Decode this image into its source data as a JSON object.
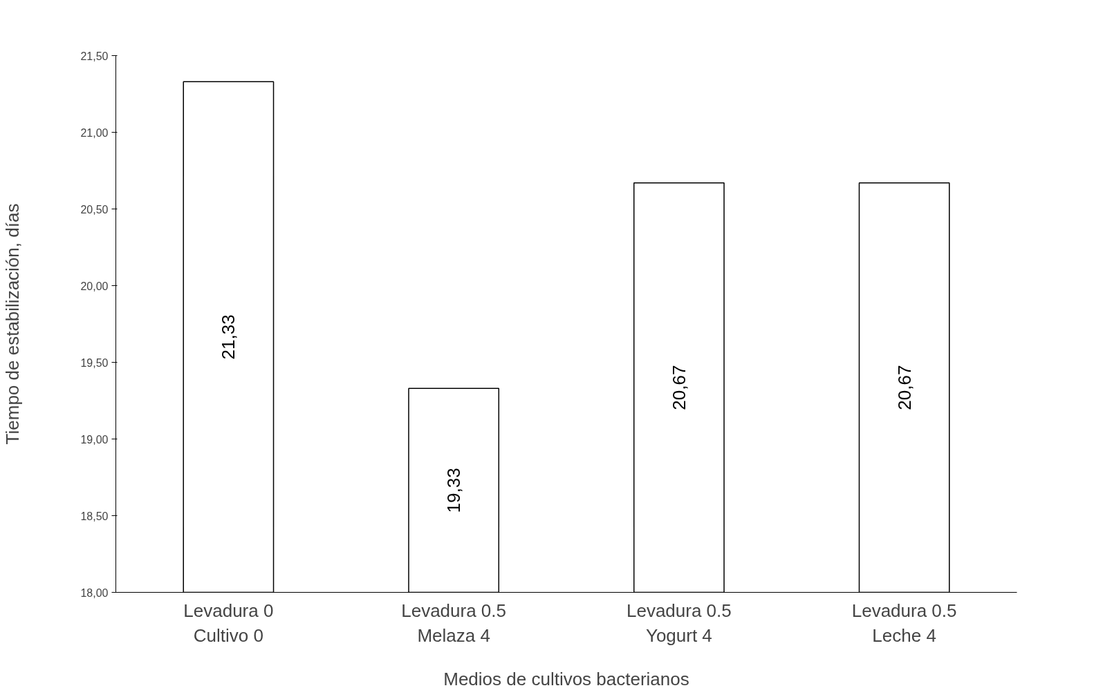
{
  "chart_data": {
    "type": "bar",
    "categories": [
      "Levadura 0\nCultivo 0",
      "Levadura 0.5\nMelaza 4",
      "Levadura 0.5\nYogurt 4",
      "Levadura 0.5\nLeche 4"
    ],
    "values": [
      21.33,
      19.33,
      20.67,
      20.67
    ],
    "value_labels": [
      "21,33",
      "19,33",
      "20,67",
      "20,67"
    ],
    "color": "#ffffff",
    "xlabel": "Medios de cultivos bacterianos",
    "ylabel": "Tiempo de estabilización, días",
    "ylim": [
      18,
      21.5
    ],
    "yticks": [
      {
        "value": 18,
        "label": "18,00"
      },
      {
        "value": 18.5,
        "label": "18,50"
      },
      {
        "value": 19,
        "label": "19,00"
      },
      {
        "value": 19.5,
        "label": "19,50"
      },
      {
        "value": 20,
        "label": "20,00"
      },
      {
        "value": 20.5,
        "label": "20,50"
      },
      {
        "value": 21,
        "label": "21,00"
      },
      {
        "value": 21.5,
        "label": "21,50"
      }
    ],
    "grid": false
  }
}
